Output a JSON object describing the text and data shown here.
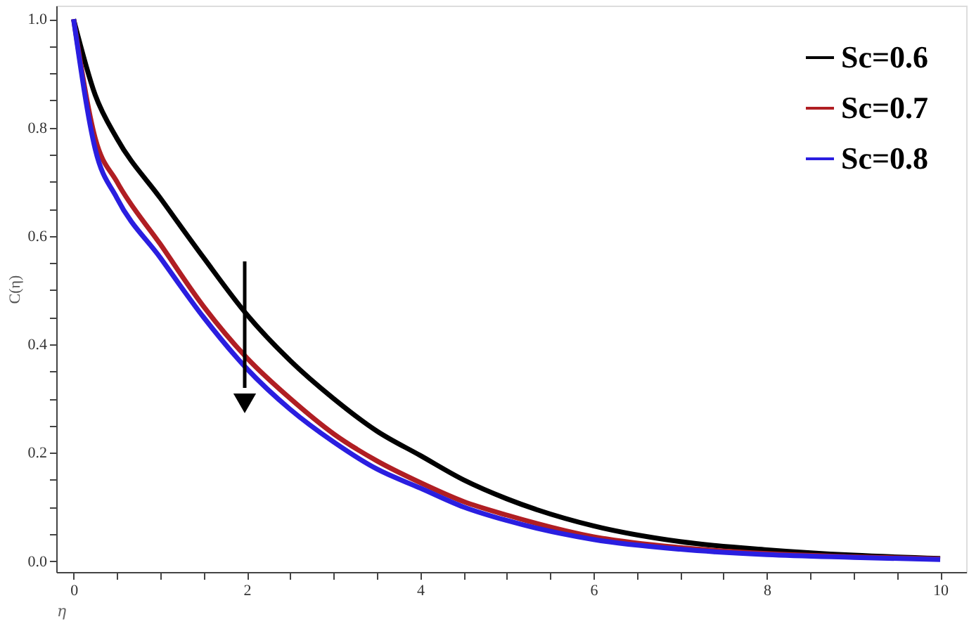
{
  "chart_data": {
    "type": "line",
    "xlabel": "η",
    "ylabel": "C(η)",
    "x": [
      0,
      0.25,
      0.5,
      1,
      1.5,
      2,
      2.5,
      3,
      3.5,
      4,
      4.5,
      5,
      6,
      7,
      8,
      9,
      10
    ],
    "series": [
      {
        "name": "Sc=0.6",
        "color": "#000000",
        "values": [
          1,
          0.86,
          0.78,
          0.67,
          0.56,
          0.455,
          0.37,
          0.3,
          0.24,
          0.195,
          0.15,
          0.115,
          0.065,
          0.036,
          0.021,
          0.011,
          0.005
        ]
      },
      {
        "name": "Sc=0.7",
        "color": "#b01e23",
        "values": [
          1,
          0.78,
          0.7,
          0.585,
          0.47,
          0.375,
          0.3,
          0.235,
          0.185,
          0.145,
          0.11,
          0.085,
          0.045,
          0.025,
          0.014,
          0.008,
          0.004
        ]
      },
      {
        "name": "Sc=0.8",
        "color": "#2a1ee0",
        "values": [
          1,
          0.76,
          0.67,
          0.56,
          0.45,
          0.355,
          0.28,
          0.22,
          0.17,
          0.135,
          0.1,
          0.075,
          0.04,
          0.022,
          0.012,
          0.007,
          0.003
        ]
      }
    ],
    "xlim": [
      -0.2,
      10.3
    ],
    "ylim": [
      -0.02,
      1.025
    ],
    "xticks": [
      0,
      {
        "value": 0.5,
        "label": null
      },
      {
        "value": 1,
        "label": null
      },
      {
        "value": 1.5,
        "label": null
      },
      2,
      {
        "value": 2.5,
        "label": null
      },
      {
        "value": 3,
        "label": null
      },
      {
        "value": 3.5,
        "label": null
      },
      4,
      {
        "value": 4.5,
        "label": null
      },
      {
        "value": 5,
        "label": null
      },
      {
        "value": 5.5,
        "label": null
      },
      6,
      {
        "value": 6.5,
        "label": null
      },
      {
        "value": 7,
        "label": null
      },
      {
        "value": 7.5,
        "label": null
      },
      8,
      {
        "value": 8.5,
        "label": null
      },
      {
        "value": 9,
        "label": null
      },
      {
        "value": 9.5,
        "label": null
      },
      10
    ],
    "yticks": [
      {
        "value": 0.0,
        "label": "0.0"
      },
      {
        "value": 0.05,
        "label": null
      },
      {
        "value": 0.1,
        "label": null
      },
      {
        "value": 0.15,
        "label": null
      },
      0.2,
      {
        "value": 0.25,
        "label": null
      },
      {
        "value": 0.3,
        "label": null
      },
      {
        "value": 0.35,
        "label": null
      },
      0.4,
      {
        "value": 0.45,
        "label": null
      },
      {
        "value": 0.5,
        "label": null
      },
      {
        "value": 0.55,
        "label": null
      },
      0.6,
      {
        "value": 0.65,
        "label": null
      },
      {
        "value": 0.7,
        "label": null
      },
      {
        "value": 0.75,
        "label": null
      },
      0.8,
      {
        "value": 0.85,
        "label": null
      },
      {
        "value": 0.9,
        "label": null
      },
      {
        "value": 0.95,
        "label": null
      },
      {
        "value": 1.0,
        "label": "1.0"
      }
    ],
    "legend": "top right",
    "grid": false,
    "marker": "none",
    "line_style": "solid"
  }
}
